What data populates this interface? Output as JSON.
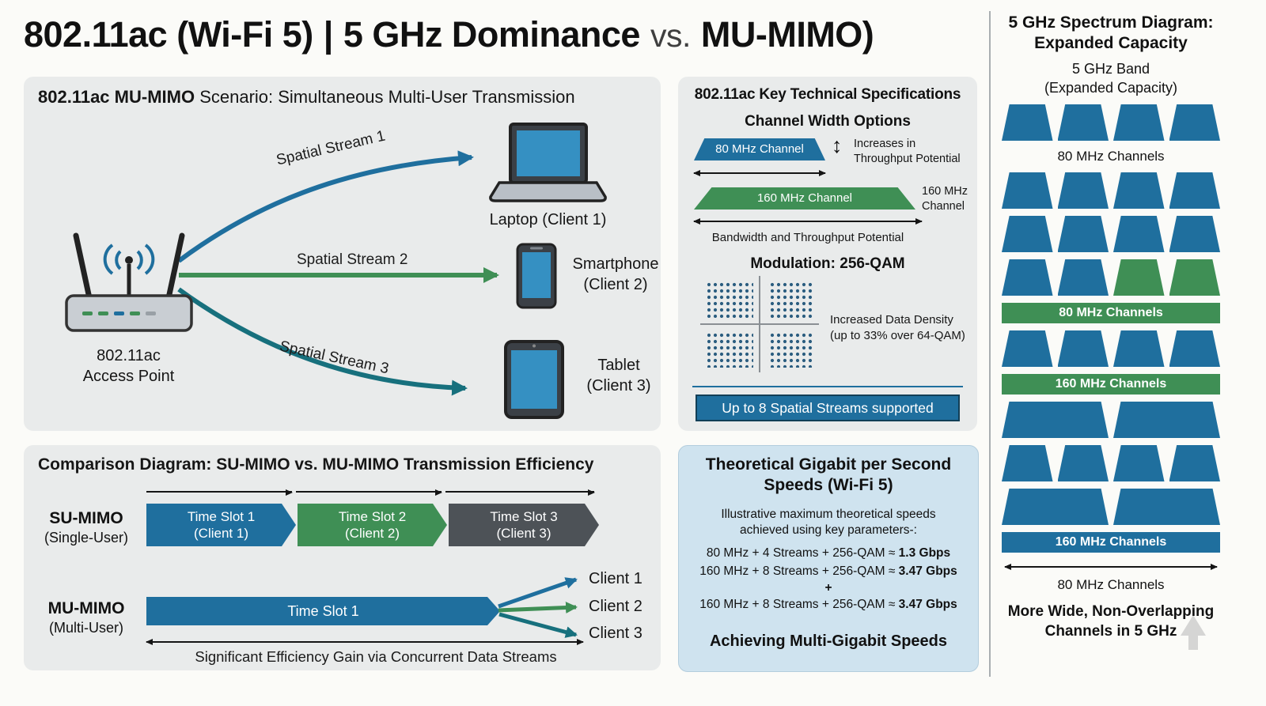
{
  "title": {
    "part1": "802.11ac (Wi-Fi 5)",
    "separator": "|",
    "part2": "5 GHz Dominance",
    "vs": "vs.",
    "part3": "MU-MIMO)"
  },
  "scenario": {
    "heading_bold": "802.11ac MU-MIMO",
    "heading_rest": " Scenario: Simultaneous Multi-User Transmission",
    "access_point": {
      "line1": "802.11ac",
      "line2": "Access Point"
    },
    "stream1": "Spatial Stream 1",
    "stream2": "Spatial Stream 2",
    "stream3": "Spatial Stream 3",
    "client1": "Laptop (Client 1)",
    "client2": {
      "line1": "Smartphone",
      "line2": "(Client 2)"
    },
    "client3": {
      "line1": "Tablet",
      "line2": "(Client 3)"
    }
  },
  "comparison": {
    "heading": "Comparison Diagram: SU-MIMO vs. MU-MIMO Transmission Efficiency",
    "su": {
      "name": "SU-MIMO",
      "sub": "(Single-User)"
    },
    "slots": [
      {
        "line1": "Time Slot 1",
        "line2": "(Client 1)"
      },
      {
        "line1": "Time Slot 2",
        "line2": "(Client 2)"
      },
      {
        "line1": "Time Slot 3",
        "line2": "(Client 3)"
      }
    ],
    "mu": {
      "name": "MU-MIMO",
      "sub": "(Multi-User)"
    },
    "mu_slot": "Time Slot 1",
    "clients": [
      "Client 1",
      "Client 2",
      "Client 3"
    ],
    "caption": "Significant Efficiency Gain via Concurrent Data Streams"
  },
  "specs": {
    "heading": "802.11ac Key Technical Specifications",
    "channel_heading": "Channel Width Options",
    "ch80": "80 MHz Channel",
    "updown_arrow": "↕",
    "updown_note": {
      "line1": "Increases in",
      "line2": "Throughput Potential"
    },
    "ch160": "160 MHz Channel",
    "ch160_note": {
      "line1": "160 MHz",
      "line2": "Channel"
    },
    "bandwidth_note": "Bandwidth and Throughput Potential",
    "modulation_heading": "Modulation: 256-QAM",
    "density_note": {
      "line1": "Increased Data Density",
      "line2": "(up to 33% over 64-QAM)"
    },
    "streams_banner": "Up to 8 Spatial Streams supported"
  },
  "speeds": {
    "heading": {
      "line1": "Theoretical Gigabit per Second",
      "line2": "Speeds (Wi-Fi 5)"
    },
    "subtitle": {
      "line1": "Illustrative maximum theoretical speeds",
      "line2": "achieved using key parameters-:"
    },
    "rows": [
      {
        "formula": "80 MHz + 4 Streams + 256-QAM ≈",
        "value": "1.3 Gbps"
      },
      {
        "formula": "160 MHz + 8 Streams + 256-QAM ≈",
        "value": "3.47 Gbps"
      },
      {
        "formula": "160 MHz + 8 Streams + 256-QAM ≈",
        "value": "3.47 Gbps"
      }
    ],
    "plus": "+",
    "footer": "Achieving Multi-Gigabit Speeds"
  },
  "spectrum": {
    "heading": {
      "line1": "5 GHz Spectrum Diagram:",
      "line2": "Expanded Capacity"
    },
    "band_label": {
      "line1": "5 GHz Band",
      "line2": "(Expanded Capacity)"
    },
    "rows": [
      {
        "kind": "channels",
        "wide": false,
        "channels": [
          "blue",
          "blue",
          "blue",
          "blue"
        ]
      },
      {
        "kind": "label",
        "label": "80 MHz Channels"
      },
      {
        "kind": "channels",
        "wide": false,
        "channels": [
          "blue",
          "blue",
          "blue",
          "blue"
        ]
      },
      {
        "kind": "channels",
        "wide": false,
        "channels": [
          "blue",
          "blue",
          "blue",
          "blue"
        ]
      },
      {
        "kind": "channels",
        "wide": false,
        "channels": [
          "blue",
          "blue",
          "green",
          "green"
        ]
      },
      {
        "kind": "banner",
        "color": "green",
        "label": "80 MHz Channels"
      },
      {
        "kind": "channels",
        "wide": false,
        "channels": [
          "blue",
          "blue",
          "blue",
          "blue"
        ]
      },
      {
        "kind": "banner",
        "color": "green",
        "label": "160 MHz Channels"
      },
      {
        "kind": "channels",
        "wide": true,
        "channels": [
          "blue",
          "blue"
        ]
      },
      {
        "kind": "channels",
        "wide": false,
        "channels": [
          "blue",
          "blue",
          "blue",
          "blue"
        ]
      },
      {
        "kind": "channels",
        "wide": true,
        "channels": [
          "blue",
          "blue"
        ]
      },
      {
        "kind": "banner",
        "color": "blue",
        "label": "160 MHz Channels"
      },
      {
        "kind": "arrow"
      },
      {
        "kind": "label",
        "label": "80 MHz Channels"
      }
    ],
    "footer": {
      "line1": "More Wide, Non-Overlapping",
      "line2": "Channels in 5 GHz"
    }
  },
  "colors": {
    "stream_blue": "#1f6f9e",
    "stream_green": "#3f8f55",
    "stream_teal": "#17707d",
    "slot_gray": "#4d5257",
    "panel_bg": "#e9ebeb",
    "speeds_bg": "#cfe3ef",
    "device_screen": "#3590c2"
  }
}
